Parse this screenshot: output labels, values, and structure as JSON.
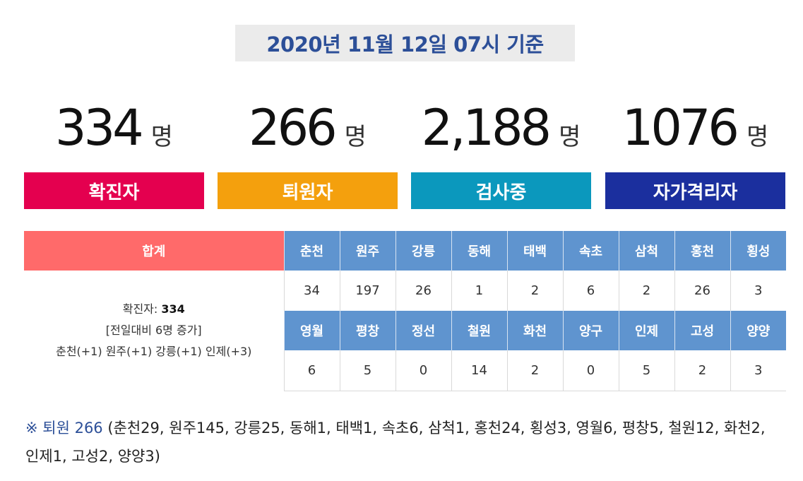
{
  "header": {
    "date_text": "2020년 11월 12일 07시 기준"
  },
  "stats": [
    {
      "number": "334",
      "unit": "명",
      "label": "확진자",
      "color": "#e4004f"
    },
    {
      "number": "266",
      "unit": "명",
      "label": "퇴원자",
      "color": "#f4a00d"
    },
    {
      "number": "2,188",
      "unit": "명",
      "label": "검사중",
      "color": "#0b98bd"
    },
    {
      "number": "1076",
      "unit": "명",
      "label": "자가격리자",
      "color": "#1b2f9e"
    }
  ],
  "table": {
    "total_header": "합계",
    "summary": {
      "confirmed_label": "확진자: ",
      "confirmed_value": "334",
      "compare": "[전일대비 6명 증가]",
      "increases": "춘천(+1) 원주(+1) 강릉(+1) 인제(+3)"
    },
    "row1": [
      {
        "region": "춘천",
        "count": "34"
      },
      {
        "region": "원주",
        "count": "197"
      },
      {
        "region": "강릉",
        "count": "26"
      },
      {
        "region": "동해",
        "count": "1"
      },
      {
        "region": "태백",
        "count": "2"
      },
      {
        "region": "속초",
        "count": "6"
      },
      {
        "region": "삼척",
        "count": "2"
      },
      {
        "region": "홍천",
        "count": "26"
      },
      {
        "region": "횡성",
        "count": "3"
      }
    ],
    "row2": [
      {
        "region": "영월",
        "count": "6"
      },
      {
        "region": "평창",
        "count": "5"
      },
      {
        "region": "정선",
        "count": "0"
      },
      {
        "region": "철원",
        "count": "14"
      },
      {
        "region": "화천",
        "count": "2"
      },
      {
        "region": "양구",
        "count": "0"
      },
      {
        "region": "인제",
        "count": "5"
      },
      {
        "region": "고성",
        "count": "2"
      },
      {
        "region": "양양",
        "count": "3"
      }
    ]
  },
  "note": {
    "prefix": "※ 퇴원 266",
    "detail": " (춘천29, 원주145, 강릉25, 동해1, 태백1, 속초6, 삼척1, 홍천24, 횡성3, 영월6, 평창5, 철원12, 화천2, 인제1, 고성2, 양양3)"
  }
}
